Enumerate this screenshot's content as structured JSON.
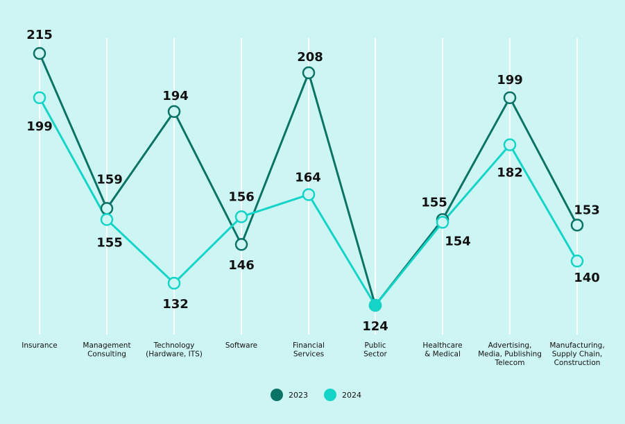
{
  "chart_data": {
    "type": "line",
    "title": "",
    "xlabel": "",
    "ylabel": "",
    "grid": "vertical",
    "legend_position": "bottom",
    "categories": [
      [
        "Insurance"
      ],
      [
        "Management",
        "Consulting"
      ],
      [
        "Technology",
        "(Hardware, ITS)"
      ],
      [
        "Software"
      ],
      [
        "Financial",
        "Services"
      ],
      [
        "Public",
        "Sector"
      ],
      [
        "Healthcare",
        "& Medical"
      ],
      [
        "Advertising,",
        "Media, Publishing",
        "Telecom"
      ],
      [
        "Manufacturing,",
        "Supply Chain,",
        "Construction"
      ]
    ],
    "series": [
      {
        "name": "2023",
        "color": "#0b7366",
        "values": [
          215,
          159,
          194,
          146,
          208,
          124,
          155,
          199,
          153
        ]
      },
      {
        "name": "2024",
        "color": "#14d4c8",
        "values": [
          199,
          155,
          132,
          156,
          164,
          124,
          154,
          182,
          140
        ]
      }
    ],
    "ylim": [
      124,
      215
    ]
  }
}
